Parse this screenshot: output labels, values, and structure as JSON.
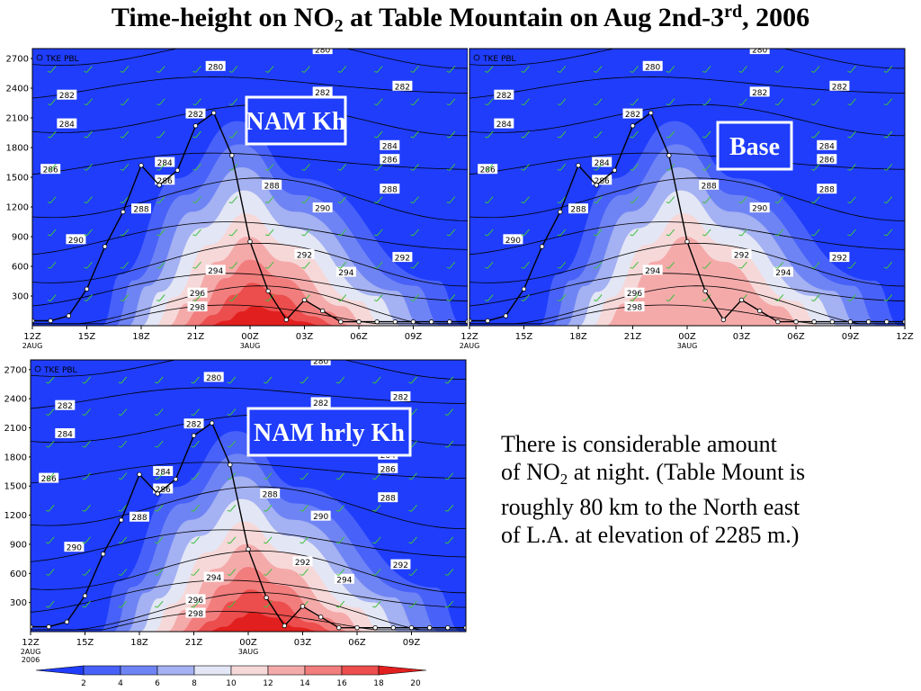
{
  "title": {
    "pre": "Time-height on NO",
    "sub": "2",
    "mid": " at Table Mountain on Aug 2nd-3",
    "sup": "rd",
    "post": ", 2006"
  },
  "note": {
    "line1": "There is considerable amount",
    "line2_pre": "of NO",
    "line2_sub": "2",
    "line2_post": " at night. (Table Mount is",
    "line3": "roughly 80 km to the North east",
    "line4": "of L.A. at elevation of 2285 m.)"
  },
  "colors": {
    "background_field": "#1f3dfb",
    "contour": "#000000",
    "wind_barb": "#3fbf3f",
    "label_box": "#ffffff",
    "scale": [
      "#1f3dfb",
      "#4861f8",
      "#6f84f4",
      "#a4b1f2",
      "#e3e6f5",
      "#f6d8d8",
      "#f5aaaa",
      "#f27d7d",
      "#ec4d4d",
      "#e21f1f"
    ]
  },
  "chart_data": [
    {
      "type": "heatmap",
      "panel_label": "NAM Kh",
      "legend_text": "TKE PBL",
      "x_ticks": [
        "12Z",
        "15Z",
        "18Z",
        "21Z",
        "00Z",
        "03Z",
        "06Z",
        "09Z",
        "12Z"
      ],
      "x_subticks": {
        "12Z": "2AUG",
        "00Z": "3AUG"
      },
      "y_ticks": [
        300,
        600,
        900,
        1200,
        1500,
        1800,
        2100,
        2400,
        2700
      ],
      "ylim": [
        0,
        2800
      ],
      "contour_labels": [
        "280",
        "282",
        "284",
        "286",
        "288",
        "290",
        "292",
        "294",
        "296",
        "298"
      ],
      "pbl_height": [
        [
          0,
          50
        ],
        [
          1,
          50
        ],
        [
          2,
          100
        ],
        [
          3,
          370
        ],
        [
          4,
          800
        ],
        [
          5,
          1150
        ],
        [
          6,
          1620
        ],
        [
          7,
          1420
        ],
        [
          8,
          1570
        ],
        [
          9,
          2020
        ],
        [
          10,
          2150
        ],
        [
          11,
          1720
        ],
        [
          12,
          850
        ],
        [
          13,
          350
        ],
        [
          14,
          60
        ],
        [
          15,
          260
        ],
        [
          16,
          150
        ],
        [
          17,
          40
        ],
        [
          18,
          40
        ],
        [
          19,
          40
        ],
        [
          20,
          40
        ],
        [
          21,
          40
        ],
        [
          22,
          40
        ],
        [
          23,
          40
        ],
        [
          24,
          40
        ]
      ],
      "no2_peak_ppb": 20
    },
    {
      "type": "heatmap",
      "panel_label": "Base",
      "legend_text": "TKE PBL",
      "x_ticks": [
        "12Z",
        "15Z",
        "18Z",
        "21Z",
        "00Z",
        "03Z",
        "06Z",
        "09Z",
        "12Z"
      ],
      "x_subticks": {
        "12Z": "2AUG",
        "00Z": "3AUG"
      },
      "y_ticks": [
        300,
        600,
        900,
        1200,
        1500,
        1800,
        2100,
        2400,
        2700
      ],
      "ylim": [
        0,
        2800
      ],
      "contour_labels": [
        "280",
        "282",
        "284",
        "286",
        "288",
        "290",
        "292",
        "294",
        "296",
        "298"
      ],
      "pbl_height": [
        [
          0,
          50
        ],
        [
          1,
          50
        ],
        [
          2,
          100
        ],
        [
          3,
          370
        ],
        [
          4,
          800
        ],
        [
          5,
          1150
        ],
        [
          6,
          1620
        ],
        [
          7,
          1420
        ],
        [
          8,
          1570
        ],
        [
          9,
          2020
        ],
        [
          10,
          2150
        ],
        [
          11,
          1720
        ],
        [
          12,
          850
        ],
        [
          13,
          350
        ],
        [
          14,
          60
        ],
        [
          15,
          260
        ],
        [
          16,
          150
        ],
        [
          17,
          40
        ],
        [
          18,
          40
        ],
        [
          19,
          40
        ],
        [
          20,
          40
        ],
        [
          21,
          40
        ],
        [
          22,
          40
        ],
        [
          23,
          40
        ],
        [
          24,
          40
        ]
      ],
      "no2_peak_ppb": 14
    },
    {
      "type": "heatmap",
      "panel_label": "NAM hrly Kh",
      "legend_text": "TKE PBL",
      "x_ticks": [
        "12Z",
        "15Z",
        "18Z",
        "21Z",
        "00Z",
        "03Z",
        "06Z",
        "09Z",
        "12Z"
      ],
      "x_subticks": {
        "12Z": "2AUG",
        "00Z": "3AUG"
      },
      "x_year": "2006",
      "y_ticks": [
        300,
        600,
        900,
        1200,
        1500,
        1800,
        2100,
        2400,
        2700
      ],
      "ylim": [
        0,
        2800
      ],
      "contour_labels": [
        "280",
        "282",
        "284",
        "286",
        "288",
        "290",
        "292",
        "294",
        "296",
        "298"
      ],
      "pbl_height": [
        [
          0,
          50
        ],
        [
          1,
          50
        ],
        [
          2,
          100
        ],
        [
          3,
          370
        ],
        [
          4,
          800
        ],
        [
          5,
          1150
        ],
        [
          6,
          1620
        ],
        [
          7,
          1420
        ],
        [
          8,
          1570
        ],
        [
          9,
          2020
        ],
        [
          10,
          2150
        ],
        [
          11,
          1720
        ],
        [
          12,
          850
        ],
        [
          13,
          350
        ],
        [
          14,
          60
        ],
        [
          15,
          260
        ],
        [
          16,
          150
        ],
        [
          17,
          40
        ],
        [
          18,
          40
        ],
        [
          19,
          40
        ],
        [
          20,
          40
        ],
        [
          21,
          40
        ],
        [
          22,
          40
        ],
        [
          23,
          40
        ],
        [
          24,
          40
        ]
      ],
      "no2_peak_ppb": 20
    },
    {
      "type": "colorbar",
      "tick_labels": [
        "2",
        "4",
        "6",
        "8",
        "10",
        "12",
        "14",
        "16",
        "18",
        "20"
      ]
    }
  ]
}
